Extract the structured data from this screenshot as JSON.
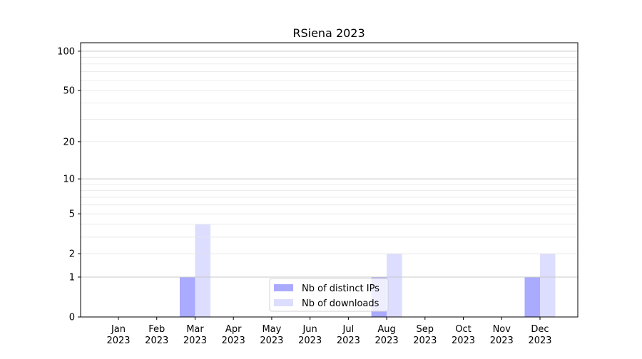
{
  "chart_data": {
    "type": "bar",
    "title": "RSiena 2023",
    "xlabel": "",
    "ylabel": "",
    "yscale": "log(1+y)",
    "ylim": [
      0,
      116
    ],
    "grid": true,
    "legend_position": "lower-center",
    "categories": [
      "Jan\n2023",
      "Feb\n2023",
      "Mar\n2023",
      "Apr\n2023",
      "May\n2023",
      "Jun\n2023",
      "Jul\n2023",
      "Aug\n2023",
      "Sep\n2023",
      "Oct\n2023",
      "Nov\n2023",
      "Dec\n2023"
    ],
    "yticks": [
      0,
      1,
      2,
      5,
      10,
      20,
      50,
      100
    ],
    "series": [
      {
        "name": "Nb of distinct IPs",
        "color": "#aaaaff",
        "values": [
          0,
          0,
          1,
          0,
          0,
          0,
          0,
          1,
          0,
          0,
          0,
          1
        ]
      },
      {
        "name": "Nb of downloads",
        "color": "#ddddff",
        "values": [
          0,
          0,
          4,
          0,
          0,
          0,
          0,
          2,
          0,
          0,
          0,
          2
        ]
      }
    ]
  }
}
